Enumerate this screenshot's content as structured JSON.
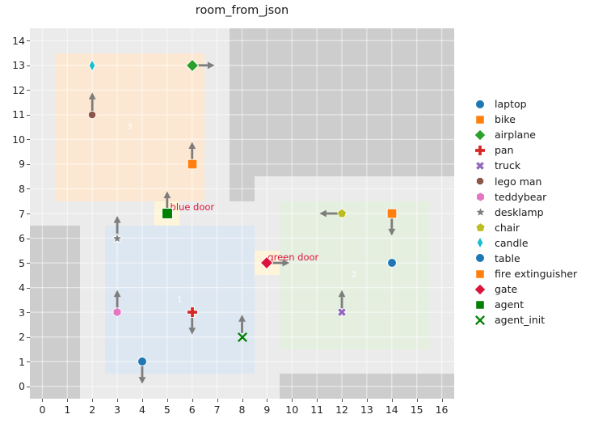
{
  "title": "room_from_json",
  "chart_data": {
    "type": "scatter",
    "title": "room_from_json",
    "xlim": [
      -0.5,
      16.5
    ],
    "ylim": [
      -0.5,
      14.5
    ],
    "x_ticks": [
      0,
      1,
      2,
      3,
      4,
      5,
      6,
      7,
      8,
      9,
      10,
      11,
      12,
      13,
      14,
      15,
      16
    ],
    "y_ticks": [
      0,
      1,
      2,
      3,
      4,
      5,
      6,
      7,
      8,
      9,
      10,
      11,
      12,
      13,
      14
    ],
    "grid": true,
    "background_color": "#ebebeb",
    "grid_color": "rgba(255,255,255,0.5)",
    "wall_color": "#cdcdcd",
    "door_color": "#fdf4d9",
    "door_text_color": "#dc143c",
    "arrow_color": "#7d7d7d",
    "legend_position": "right",
    "regions": [
      {
        "label": "1",
        "x0": 2.5,
        "x1": 8.5,
        "y0": 0.5,
        "y1": 6.5,
        "color": "#dde7f1",
        "label_x": 5.5,
        "label_y": 3.5
      },
      {
        "label": "2",
        "x0": 9.5,
        "x1": 15.5,
        "y0": 1.5,
        "y1": 7.5,
        "color": "#e5efe0",
        "label_x": 12.5,
        "label_y": 4.5
      },
      {
        "label": "3",
        "x0": 0.5,
        "x1": 6.5,
        "y0": 7.5,
        "y1": 13.5,
        "color": "#fce8d2",
        "label_x": 3.5,
        "label_y": 10.5
      }
    ],
    "walls": [
      {
        "x0": -0.5,
        "x1": 1.5,
        "y0": -0.5,
        "y1": 6.5
      },
      {
        "x0": 9.5,
        "x1": 16.5,
        "y0": -0.5,
        "y1": 0.5
      },
      {
        "x0": 7.5,
        "x1": 8.5,
        "y0": 7.5,
        "y1": 14.5
      },
      {
        "x0": 8.5,
        "x1": 16.5,
        "y0": 8.5,
        "y1": 14.5
      }
    ],
    "doors": [
      {
        "label": "blue door",
        "x0": 4.5,
        "x1": 5.5,
        "y0": 6.5,
        "y1": 7.5,
        "label_x": 5.12,
        "label_y": 7.05
      },
      {
        "label": "green door",
        "x0": 8.5,
        "x1": 9.5,
        "y0": 4.5,
        "y1": 5.5,
        "label_x": 9.03,
        "label_y": 5.04
      }
    ],
    "objects": [
      {
        "name": "laptop",
        "marker": "circle",
        "color": "#1f77b4",
        "x": 14,
        "y": 5,
        "arrow": null,
        "size": 16
      },
      {
        "name": "bike",
        "marker": "square",
        "color": "#ff7f0e",
        "x": 6,
        "y": 9,
        "arrow": "up",
        "size": 18
      },
      {
        "name": "airplane",
        "marker": "diamond",
        "color": "#2ca02c",
        "x": 6,
        "y": 13,
        "arrow": "right",
        "size": 18
      },
      {
        "name": "pan",
        "marker": "plus",
        "color": "#d62728",
        "x": 6,
        "y": 3,
        "arrow": "down",
        "size": 16
      },
      {
        "name": "truck",
        "marker": "x-filled",
        "color": "#9467bd",
        "x": 12,
        "y": 3,
        "arrow": "up",
        "size": 14
      },
      {
        "name": "lego man",
        "marker": "octagon",
        "color": "#8c564b",
        "x": 2,
        "y": 11,
        "arrow": "up",
        "size": 14
      },
      {
        "name": "teddybear",
        "marker": "hexagon",
        "color": "#e377c2",
        "x": 3,
        "y": 3,
        "arrow": "up",
        "size": 15
      },
      {
        "name": "desklamp",
        "marker": "star",
        "color": "#7f7f7f",
        "x": 3,
        "y": 6,
        "arrow": "up",
        "size": 15
      },
      {
        "name": "chair",
        "marker": "pentagon",
        "color": "#bcbd22",
        "x": 12,
        "y": 7,
        "arrow": "left",
        "size": 15
      },
      {
        "name": "candle",
        "marker": "thin-diamond",
        "color": "#17becf",
        "x": 2,
        "y": 13,
        "arrow": null,
        "size": 16
      },
      {
        "name": "table",
        "marker": "circle",
        "color": "#1f77b4",
        "x": 4,
        "y": 1,
        "arrow": "down",
        "size": 16
      },
      {
        "name": "fire extinguisher",
        "marker": "square",
        "color": "#ff7f0e",
        "x": 14,
        "y": 7,
        "arrow": "down",
        "size": 18
      },
      {
        "name": "gate",
        "marker": "diamond",
        "color": "#dc143c",
        "x": 9,
        "y": 5,
        "arrow": "right",
        "size": 18
      },
      {
        "name": "agent",
        "marker": "square",
        "color": "#008000",
        "x": 5,
        "y": 7,
        "arrow": "up",
        "size": 20
      },
      {
        "name": "agent_init",
        "marker": "x-stroke",
        "color": "#008000",
        "x": 8,
        "y": 2,
        "arrow": "up",
        "size": 16
      }
    ]
  }
}
